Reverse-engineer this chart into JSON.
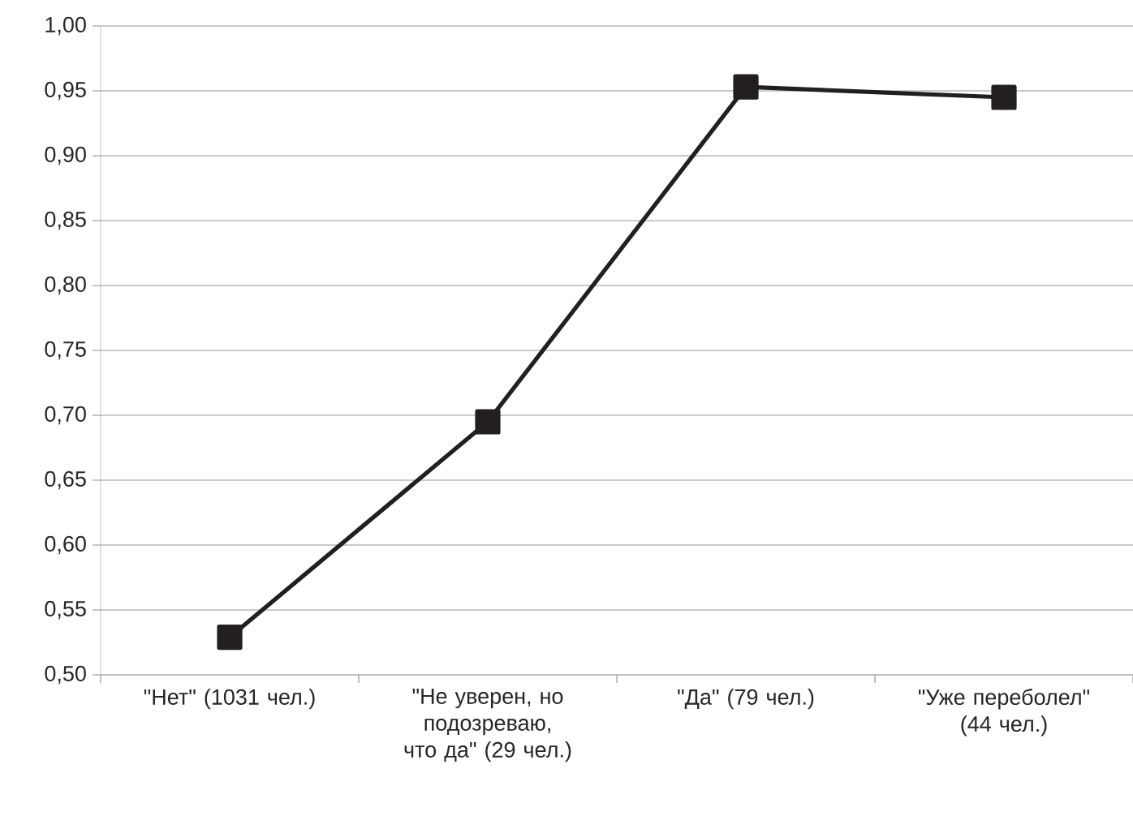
{
  "chart_data": {
    "type": "line",
    "categories": [
      "\"Нет\"   (1031 чел.)",
      "\"Не уверен, но подозреваю, что да\"   (29 чел.)",
      "\"Да\" (79 чел.)",
      "\"Уже переболел\" (44 чел.)"
    ],
    "values": [
      0.529,
      0.695,
      0.953,
      0.945
    ],
    "color": "#231f20",
    "marker": "square",
    "line_style": "solid",
    "grid": "y",
    "ylim": [
      0.5,
      1.0
    ],
    "yticks": [
      {
        "value": 0.5,
        "label": "0,50"
      },
      {
        "value": 0.55,
        "label": "0,55"
      },
      {
        "value": 0.6,
        "label": "0,60"
      },
      {
        "value": 0.65,
        "label": "0,65"
      },
      {
        "value": 0.7,
        "label": "0,70"
      },
      {
        "value": 0.75,
        "label": "0,75"
      },
      {
        "value": 0.8,
        "label": "0,80"
      },
      {
        "value": 0.85,
        "label": "0,85"
      },
      {
        "value": 0.9,
        "label": "0,90"
      },
      {
        "value": 0.95,
        "label": "0,95"
      },
      {
        "value": 1.0,
        "label": "1,00"
      }
    ]
  }
}
